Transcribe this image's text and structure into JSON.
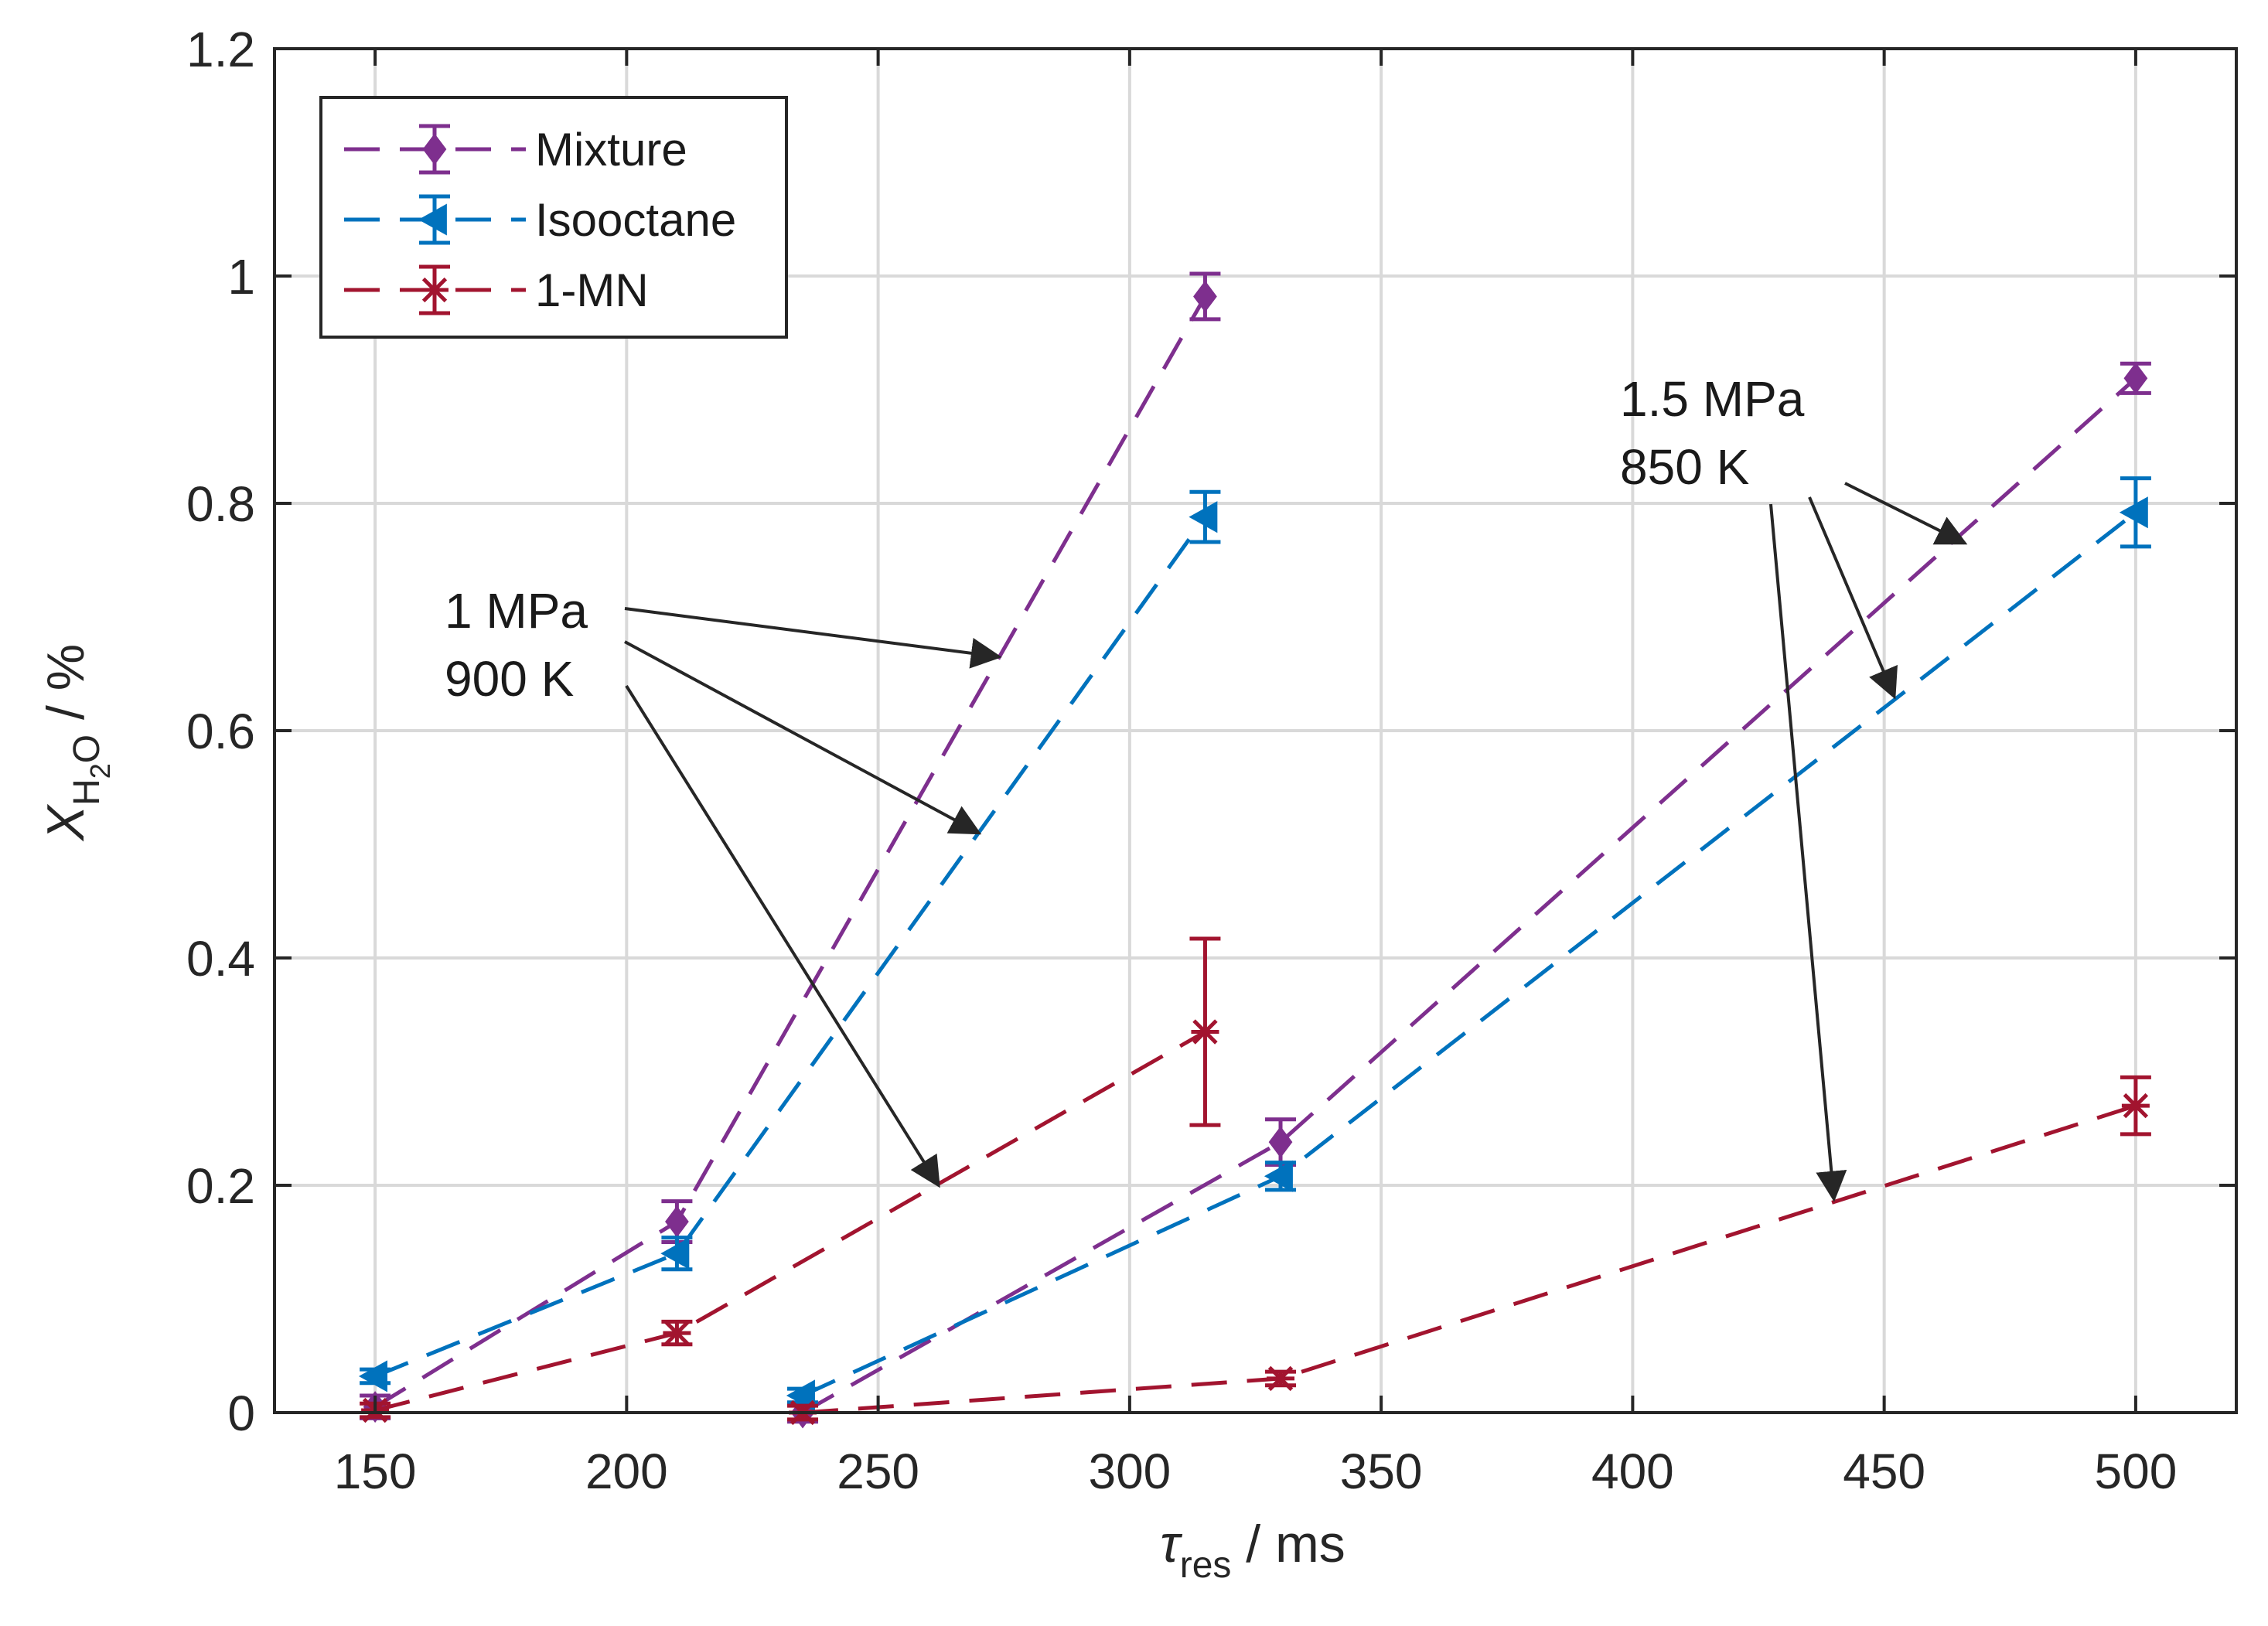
{
  "chart_data": {
    "type": "line",
    "xlabel": {
      "symbol": "τ",
      "sub": "res",
      "unit": " / ms"
    },
    "ylabel": {
      "symbol": "X",
      "sub": "H",
      "subsub": "2",
      "sub2": "O",
      "unit": " / %"
    },
    "xlim": [
      130,
      520
    ],
    "ylim": [
      0,
      1.2
    ],
    "xticks": [
      150,
      200,
      250,
      300,
      350,
      400,
      450,
      500
    ],
    "yticks": [
      0,
      0.2,
      0.4,
      0.6,
      0.8,
      1,
      1.2
    ],
    "xtick_labels": [
      "150",
      "200",
      "250",
      "300",
      "350",
      "400",
      "450",
      "500"
    ],
    "ytick_labels": [
      "0",
      "0.2",
      "0.4",
      "0.6",
      "0.8",
      "1",
      "1.2"
    ],
    "grid": true,
    "legend_position": "top-left",
    "series": [
      {
        "name": "Mixture",
        "color": "#7E2F8E",
        "marker": "diamond",
        "groups": [
          {
            "x": [
              150,
              210,
              315
            ],
            "y": [
              0.005,
              0.168,
              0.982
            ],
            "err": [
              0.01,
              0.018,
              0.02
            ]
          },
          {
            "x": [
              235,
              330,
              500
            ],
            "y": [
              0.0,
              0.238,
              0.91
            ],
            "err": [
              0.008,
              0.02,
              0.013
            ]
          }
        ]
      },
      {
        "name": "Isooctane",
        "color": "#0072BD",
        "marker": "triangle-left",
        "groups": [
          {
            "x": [
              150,
              210,
              315
            ],
            "y": [
              0.032,
              0.14,
              0.788
            ],
            "err": [
              0.006,
              0.014,
              0.022
            ]
          },
          {
            "x": [
              235,
              330,
              500
            ],
            "y": [
              0.015,
              0.208,
              0.792
            ],
            "err": [
              0.006,
              0.012,
              0.03
            ]
          }
        ]
      },
      {
        "name": "1-MN",
        "color": "#A2142F",
        "marker": "asterisk",
        "groups": [
          {
            "x": [
              150,
              210,
              315
            ],
            "y": [
              0.002,
              0.07,
              0.335
            ],
            "err": [
              0.006,
              0.01,
              0.082
            ]
          },
          {
            "x": [
              235,
              330,
              500
            ],
            "y": [
              0.0,
              0.03,
              0.27
            ],
            "err": [
              0.006,
              0.006,
              0.025
            ]
          }
        ]
      }
    ],
    "annotations": [
      {
        "lines": [
          "1 MPa",
          "900 K"
        ],
        "targets": [
          [
            274,
            0.665
          ],
          [
            270,
            0.51
          ],
          [
            262,
            0.2
          ]
        ]
      },
      {
        "lines": [
          "1.5 MPa",
          "850 K"
        ],
        "targets": [
          [
            466,
            0.765
          ],
          [
            452,
            0.63
          ],
          [
            440,
            0.188
          ]
        ]
      }
    ]
  }
}
